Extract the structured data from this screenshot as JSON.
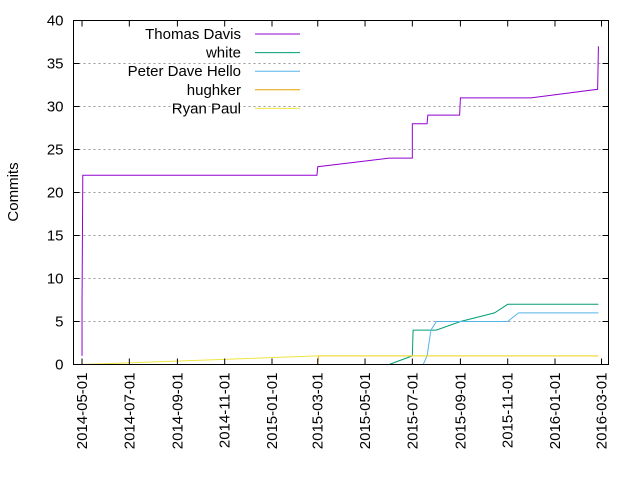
{
  "chart_data": {
    "type": "line",
    "title": "",
    "xlabel": "",
    "ylabel": "Commits",
    "xlim": [
      "2014-04-20",
      "2016-03-10"
    ],
    "ylim": [
      0,
      40
    ],
    "yticks": [
      0,
      5,
      10,
      15,
      20,
      25,
      30,
      35,
      40
    ],
    "xticks": [
      "2014-05-01",
      "2014-07-01",
      "2014-09-01",
      "2014-11-01",
      "2015-01-01",
      "2015-03-01",
      "2015-05-01",
      "2015-07-01",
      "2015-09-01",
      "2015-11-01",
      "2016-01-01",
      "2016-03-01"
    ],
    "grid": "horizontal dotted",
    "legend_position": "top-left",
    "series": [
      {
        "name": "Thomas Davis",
        "color": "#9400d3",
        "points": [
          [
            "2014-05-01",
            1
          ],
          [
            "2014-05-01",
            7
          ],
          [
            "2014-05-02",
            22
          ],
          [
            "2015-02-28",
            22
          ],
          [
            "2015-03-01",
            23
          ],
          [
            "2015-06-01",
            24
          ],
          [
            "2015-07-01",
            24
          ],
          [
            "2015-07-01",
            28
          ],
          [
            "2015-07-20",
            28
          ],
          [
            "2015-07-21",
            29
          ],
          [
            "2015-08-31",
            29
          ],
          [
            "2015-09-01",
            31
          ],
          [
            "2015-12-01",
            31
          ],
          [
            "2016-02-25",
            32
          ],
          [
            "2016-02-26",
            37
          ]
        ]
      },
      {
        "name": "white",
        "color": "#009e73",
        "points": [
          [
            "2015-06-01",
            0
          ],
          [
            "2015-07-01",
            1
          ],
          [
            "2015-07-02",
            4
          ],
          [
            "2015-08-01",
            4
          ],
          [
            "2015-09-01",
            5
          ],
          [
            "2015-10-15",
            6
          ],
          [
            "2015-11-01",
            7
          ],
          [
            "2016-02-26",
            7
          ]
        ]
      },
      {
        "name": "Peter Dave Hello",
        "color": "#56b4e9",
        "points": [
          [
            "2015-07-15",
            0
          ],
          [
            "2015-07-20",
            1
          ],
          [
            "2015-07-25",
            4
          ],
          [
            "2015-08-01",
            5
          ],
          [
            "2015-11-01",
            5
          ],
          [
            "2015-11-15",
            6
          ],
          [
            "2016-02-26",
            6
          ]
        ]
      },
      {
        "name": "hughker",
        "color": "#e69f00",
        "points": [
          [
            "2014-05-01",
            0
          ],
          [
            "2015-03-01",
            0
          ],
          [
            "2015-03-02",
            1
          ],
          [
            "2016-02-26",
            1
          ]
        ]
      },
      {
        "name": "Ryan Paul",
        "color": "#f0e442",
        "points": [
          [
            "2014-05-01",
            0
          ],
          [
            "2015-03-01",
            1
          ],
          [
            "2016-02-26",
            1
          ]
        ]
      }
    ]
  }
}
